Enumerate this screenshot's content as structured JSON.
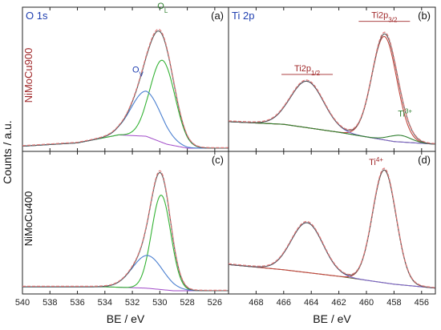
{
  "figure": {
    "ylabel": "Counts / a.u.",
    "colors": {
      "frame": "#222222",
      "experimental": "#e07a7a",
      "fit_envelope": "#555555",
      "ol": "#33b233",
      "ov": "#4a7fd0",
      "background_line": "#a04ac8",
      "ti_2p12": "#7a63c6",
      "ti_2p32": "#c2483f",
      "ti3": "#2f7f2f",
      "ti_background": "#5a5a2a",
      "sample_label": "#a0282a",
      "region_label": "#1f3fb0",
      "ti_label": "#a0282a",
      "ti3_label": "#2f7f2f"
    }
  },
  "chart_data": [
    {
      "panel": "a",
      "type": "line",
      "region": "O 1s",
      "sample": "NiMoCu900",
      "xlabel": "BE / eV",
      "xlim": [
        540,
        525
      ],
      "ylim": [
        0,
        1
      ],
      "xticks": [
        540,
        538,
        536,
        534,
        532,
        530,
        528,
        526
      ],
      "annotations": [
        {
          "text": "O",
          "sub": "L",
          "x": 529.8,
          "y": 1.05,
          "color": "#2f7f2f"
        },
        {
          "text": "O",
          "sub": "V",
          "x": 531.6,
          "y": 0.57,
          "color": "#1f3fb0"
        }
      ],
      "series": [
        {
          "role": "O_L",
          "center": 529.8,
          "height": 0.62,
          "width": 0.9,
          "baseline": 0.0
        },
        {
          "role": "O_V",
          "center": 531.0,
          "height": 0.34,
          "width": 1.1,
          "baseline": 0.0
        },
        {
          "role": "background",
          "points": [
            [
              540,
              0.015
            ],
            [
              536,
              0.04
            ],
            [
              533,
              0.1
            ],
            [
              531,
              0.09
            ],
            [
              529.5,
              0.03
            ],
            [
              528,
              0.0
            ],
            [
              525,
              0.0
            ]
          ]
        },
        {
          "role": "envelope",
          "peaks": [
            "O_L",
            "O_V"
          ],
          "background": true
        }
      ]
    },
    {
      "panel": "b",
      "type": "line",
      "region": "Ti 2p",
      "xlabel": "BE / eV",
      "xlim": [
        470,
        455
      ],
      "ylim": [
        0,
        1
      ],
      "xticks": [
        468,
        466,
        464,
        462,
        460,
        458,
        456
      ],
      "annotations": [
        {
          "text": "Ti2p",
          "sub": "1/2",
          "x": 464.3,
          "y": 0.58,
          "color": "#a0282a",
          "overline": true
        },
        {
          "text": "Ti2p",
          "sub": "3/2",
          "x": 458.7,
          "y": 0.98,
          "color": "#a0282a",
          "overline": true
        },
        {
          "text": "Ti",
          "sup": "3+",
          "x": 457.2,
          "y": 0.24,
          "color": "#2f7f2f"
        }
      ],
      "series": [
        {
          "role": "Ti2p3/2",
          "center": 458.7,
          "height": 0.78,
          "width": 0.9
        },
        {
          "role": "Ti2p1/2",
          "center": 464.3,
          "height": 0.35,
          "width": 1.2
        },
        {
          "role": "Ti3+",
          "center": 457.6,
          "height": 0.05,
          "width": 0.8
        },
        {
          "role": "background",
          "points": [
            [
              470,
              0.2
            ],
            [
              466,
              0.18
            ],
            [
              462,
              0.12
            ],
            [
              458,
              0.05
            ],
            [
              455,
              0.03
            ]
          ]
        },
        {
          "role": "envelope",
          "peaks": [
            "Ti2p3/2",
            "Ti2p1/2",
            "Ti3+"
          ],
          "background": true
        }
      ]
    },
    {
      "panel": "c",
      "type": "line",
      "region": "O 1s",
      "sample": "NiMoCu400",
      "xlabel": "BE / eV",
      "xlim": [
        540,
        525
      ],
      "ylim": [
        0,
        1
      ],
      "xticks": [
        540,
        538,
        536,
        534,
        532,
        530,
        528,
        526
      ],
      "annotations": [],
      "series": [
        {
          "role": "O_L",
          "center": 529.9,
          "height": 0.72,
          "width": 0.7
        },
        {
          "role": "O_V",
          "center": 530.9,
          "height": 0.25,
          "width": 1.1
        },
        {
          "role": "background",
          "points": [
            [
              540,
              0.03
            ],
            [
              534,
              0.03
            ],
            [
              531,
              0.02
            ],
            [
              529,
              0.0
            ],
            [
              525,
              0.0
            ]
          ]
        },
        {
          "role": "envelope",
          "peaks": [
            "O_L",
            "O_V"
          ],
          "background": true
        }
      ]
    },
    {
      "panel": "d",
      "type": "line",
      "region": "Ti 2p",
      "xlabel": "BE / eV",
      "xlim": [
        470,
        455
      ],
      "ylim": [
        0,
        1
      ],
      "xticks": [
        468,
        466,
        464,
        462,
        460,
        458,
        456
      ],
      "annotations": [
        {
          "text": "Ti",
          "sup": "4+",
          "x": 459.3,
          "y": 0.96,
          "color": "#a0282a"
        }
      ],
      "series": [
        {
          "role": "Ti4+",
          "center": 458.7,
          "height": 0.86,
          "width": 0.85
        },
        {
          "role": "Ti2p1/2",
          "center": 464.3,
          "height": 0.38,
          "width": 1.15
        },
        {
          "role": "background",
          "points": [
            [
              470,
              0.2
            ],
            [
              466,
              0.16
            ],
            [
              462,
              0.11
            ],
            [
              458,
              0.05
            ],
            [
              455,
              0.02
            ]
          ]
        },
        {
          "role": "envelope",
          "peaks": [
            "Ti4+",
            "Ti2p1/2"
          ],
          "background": true
        }
      ]
    }
  ]
}
